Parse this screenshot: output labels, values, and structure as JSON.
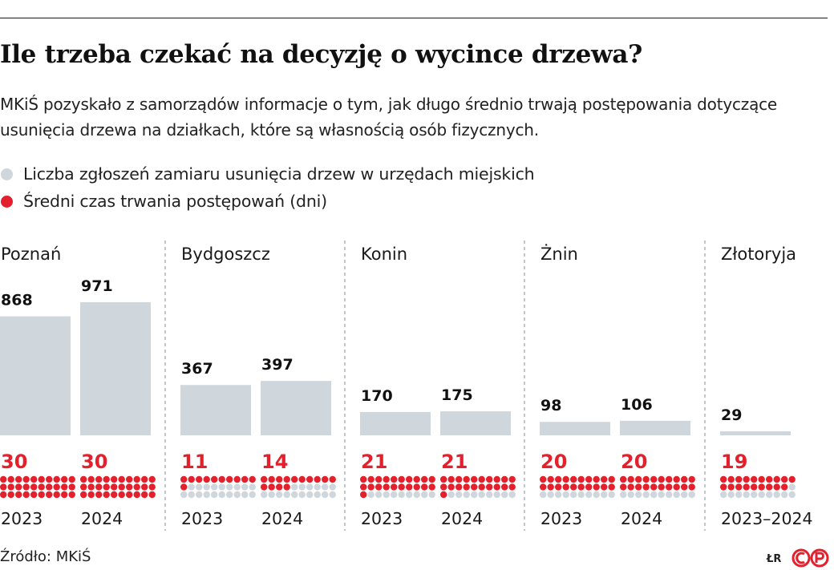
{
  "title": "Ile trzeba czekać na decyzję o wycince drzewa?",
  "subtitle": "MKiŚ pozyskało z samorządów informacje o tym, jak długo średnio trwają postępowania dotyczące usunięcia drzewa na działkach, które są własnością osób fizycznych.",
  "colors": {
    "bar": "#cfd7dc",
    "accent": "#e3202c",
    "dot_off": "#cfd7dc"
  },
  "chart_data": {
    "type": "bar",
    "title": "Ile trzeba czekać na decyzję o wycince drzewa?",
    "legend": [
      {
        "label": "Liczba zgłoszeń zamiaru usunięcia drzew w urzędach miejskich",
        "color": "#cfd7dc"
      },
      {
        "label": "Średni czas trwania postępowań (dni)",
        "color": "#e3202c"
      }
    ],
    "groups": [
      {
        "city": "Poznań",
        "entries": [
          {
            "year": "2023",
            "applications": 868,
            "days": 30
          },
          {
            "year": "2024",
            "applications": 971,
            "days": 30
          }
        ]
      },
      {
        "city": "Bydgoszcz",
        "entries": [
          {
            "year": "2023",
            "applications": 367,
            "days": 11
          },
          {
            "year": "2024",
            "applications": 397,
            "days": 14
          }
        ]
      },
      {
        "city": "Konin",
        "entries": [
          {
            "year": "2023",
            "applications": 170,
            "days": 21
          },
          {
            "year": "2024",
            "applications": 175,
            "days": 21
          }
        ]
      },
      {
        "city": "Żnin",
        "entries": [
          {
            "year": "2023",
            "applications": 98,
            "days": 20
          },
          {
            "year": "2024",
            "applications": 106,
            "days": 20
          }
        ]
      },
      {
        "city": "Złotoryja",
        "entries": [
          {
            "year": "2023–2024",
            "applications": 29,
            "days": 19
          }
        ]
      }
    ],
    "dots_total": 30,
    "ylim": [
      0,
      1000
    ]
  },
  "footer": {
    "source": "Źródło: MKiŚ",
    "author": "ŁR",
    "logo": "cp-logo"
  }
}
